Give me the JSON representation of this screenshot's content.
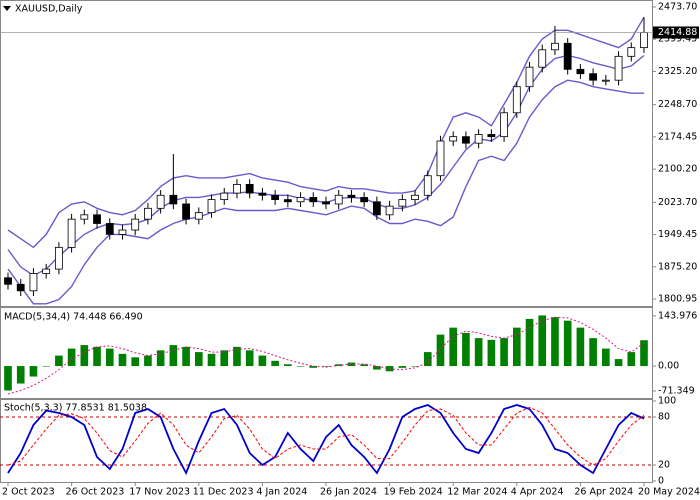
{
  "chart_data": [
    {
      "type": "candlestick",
      "title": "XAUUSD,Daily",
      "categories": [
        "2 Oct 2023",
        null,
        null,
        null,
        null,
        "26 Oct 2023",
        null,
        null,
        null,
        null,
        "17 Nov 2023",
        null,
        null,
        null,
        null,
        "11 Dec 2023",
        null,
        null,
        null,
        null,
        "4 Jan 2024",
        null,
        null,
        null,
        null,
        "26 Jan 2024",
        null,
        null,
        null,
        null,
        "19 Feb 2024",
        null,
        null,
        null,
        null,
        "12 Mar 2024",
        null,
        null,
        null,
        null,
        "4 Apr 2024",
        null,
        null,
        null,
        null,
        "26 Apr 2024",
        null,
        null,
        null,
        null,
        "20 May 2024"
      ],
      "open": [
        1850,
        1835,
        1820,
        1860,
        1870,
        1920,
        1985,
        1995,
        1975,
        1950,
        1960,
        1985,
        2010,
        2040,
        2020,
        1985,
        2000,
        2030,
        2045,
        2065,
        2045,
        2040,
        2030,
        2025,
        2035,
        2025,
        2020,
        2040,
        2035,
        2025,
        1995,
        2015,
        2030,
        2040,
        2085,
        2165,
        2175,
        2160,
        2180,
        2175,
        2230,
        2290,
        2335,
        2375,
        2390,
        2330,
        2320,
        2305,
        2305,
        2360,
        2380
      ],
      "high": [
        1862,
        1847,
        1872,
        1882,
        1932,
        1997,
        2007,
        2007,
        1987,
        1972,
        1997,
        2022,
        2052,
        2135,
        2032,
        2012,
        2042,
        2057,
        2077,
        2077,
        2057,
        2052,
        2042,
        2047,
        2047,
        2037,
        2052,
        2052,
        2047,
        2037,
        2027,
        2042,
        2052,
        2097,
        2177,
        2187,
        2187,
        2192,
        2192,
        2242,
        2302,
        2347,
        2387,
        2430,
        2402,
        2342,
        2332,
        2317,
        2372,
        2392,
        2450
      ],
      "low": [
        1823,
        1808,
        1808,
        1848,
        1858,
        1908,
        1973,
        1963,
        1938,
        1938,
        1948,
        1973,
        1998,
        2008,
        1973,
        1973,
        1988,
        2018,
        2033,
        2033,
        2028,
        2018,
        2013,
        2013,
        2013,
        2008,
        2008,
        2023,
        2013,
        1983,
        1983,
        2003,
        2018,
        2028,
        2073,
        2153,
        2148,
        2148,
        2163,
        2163,
        2218,
        2278,
        2323,
        2363,
        2318,
        2308,
        2293,
        2293,
        2293,
        2348,
        2368
      ],
      "close": [
        1835,
        1820,
        1860,
        1870,
        1920,
        1985,
        1995,
        1975,
        1950,
        1960,
        1985,
        2010,
        2040,
        2020,
        1985,
        2000,
        2030,
        2045,
        2065,
        2045,
        2040,
        2030,
        2025,
        2035,
        2025,
        2020,
        2040,
        2035,
        2025,
        1995,
        2015,
        2030,
        2040,
        2085,
        2165,
        2175,
        2160,
        2180,
        2175,
        2230,
        2290,
        2335,
        2375,
        2390,
        2330,
        2320,
        2305,
        2305,
        2360,
        2380,
        2415
      ],
      "up_color": "#ffffff",
      "down_color": "#000000",
      "bands": {
        "color": "#6a5acd",
        "upper": [
          1960,
          1940,
          1920,
          1950,
          2000,
          2020,
          2025,
          2010,
          2000,
          1995,
          2005,
          2030,
          2060,
          2080,
          2085,
          2080,
          2080,
          2080,
          2085,
          2090,
          2080,
          2075,
          2070,
          2060,
          2055,
          2050,
          2060,
          2055,
          2055,
          2050,
          2045,
          2045,
          2050,
          2090,
          2160,
          2220,
          2230,
          2220,
          2200,
          2250,
          2300,
          2360,
          2400,
          2420,
          2420,
          2410,
          2400,
          2390,
          2380,
          2400,
          2450
        ],
        "middle": [
          1915,
          1875,
          1855,
          1870,
          1900,
          1925,
          1950,
          1965,
          1975,
          1972,
          1975,
          1985,
          2010,
          2028,
          2035,
          2035,
          2040,
          2045,
          2045,
          2048,
          2043,
          2040,
          2040,
          2033,
          2028,
          2023,
          2033,
          2035,
          2033,
          2020,
          2010,
          2010,
          2018,
          2035,
          2065,
          2105,
          2145,
          2170,
          2165,
          2185,
          2230,
          2290,
          2330,
          2355,
          2362,
          2355,
          2345,
          2338,
          2330,
          2338,
          2362
        ],
        "lower": [
          1870,
          1830,
          1790,
          1790,
          1800,
          1830,
          1880,
          1920,
          1950,
          1950,
          1945,
          1940,
          1960,
          1975,
          1985,
          1990,
          2000,
          2010,
          2005,
          2005,
          2005,
          2005,
          2010,
          2005,
          2000,
          1995,
          2005,
          2015,
          2010,
          1990,
          1975,
          1975,
          1985,
          1980,
          1970,
          1990,
          2060,
          2120,
          2130,
          2120,
          2160,
          2220,
          2260,
          2290,
          2305,
          2300,
          2290,
          2285,
          2280,
          2275,
          2275
        ]
      },
      "last_price": 2414.88,
      "ylim": [
        1787.3,
        2485.1
      ],
      "yticks": [
        {
          "value": 2473.7,
          "label": "2473.70"
        },
        2399.45,
        {
          "value": 2325.2,
          "label": "2325.20"
        },
        {
          "value": 2248.7,
          "label": "2248.70"
        },
        2174.45,
        {
          "value": 2100.2,
          "label": "2100.20"
        },
        {
          "value": 2023.7,
          "label": "2023.70"
        },
        1949.45,
        {
          "value": 1875.2,
          "label": "1875.20"
        },
        1800.95
      ]
    },
    {
      "type": "bar",
      "title": "MACD(5,34,4) 74.448 66.490",
      "color": "#008000",
      "values": [
        -70,
        -50,
        -30,
        0,
        30,
        50,
        60,
        55,
        50,
        35,
        25,
        30,
        45,
        60,
        55,
        40,
        35,
        45,
        55,
        45,
        30,
        15,
        5,
        0,
        -5,
        0,
        5,
        10,
        5,
        -10,
        -15,
        -5,
        0,
        40,
        90,
        110,
        95,
        80,
        75,
        80,
        110,
        135,
        145,
        140,
        130,
        110,
        80,
        50,
        20,
        40,
        74
      ],
      "signal": {
        "color": "#e0148c",
        "values": [
          -80,
          -70,
          -55,
          -35,
          -10,
          20,
          40,
          55,
          58,
          50,
          38,
          30,
          35,
          45,
          55,
          50,
          40,
          40,
          48,
          50,
          42,
          30,
          18,
          8,
          0,
          -3,
          2,
          6,
          6,
          0,
          -8,
          -10,
          -5,
          10,
          50,
          85,
          100,
          95,
          85,
          80,
          90,
          110,
          130,
          140,
          138,
          125,
          105,
          80,
          50,
          40,
          66
        ]
      },
      "ylim": [
        -88.6,
        163.4
      ],
      "yticks": [
        143.976,
        {
          "value": 0,
          "label": "0.00"
        },
        -71.349
      ]
    },
    {
      "type": "line",
      "title": "Stoch(5,3,3) 77.8531 81.5038",
      "series": [
        {
          "color": "#0000cd",
          "values": [
            10,
            35,
            70,
            88,
            85,
            80,
            70,
            30,
            15,
            40,
            85,
            90,
            80,
            40,
            10,
            50,
            85,
            90,
            70,
            35,
            20,
            30,
            60,
            40,
            25,
            55,
            70,
            45,
            30,
            10,
            40,
            80,
            90,
            95,
            85,
            60,
            40,
            35,
            60,
            90,
            95,
            90,
            70,
            40,
            35,
            20,
            10,
            40,
            70,
            85,
            78
          ]
        },
        {
          "color": "#ff0000",
          "dash": true,
          "values": [
            20,
            25,
            45,
            65,
            82,
            84,
            78,
            60,
            38,
            30,
            50,
            72,
            85,
            70,
            45,
            35,
            55,
            78,
            82,
            65,
            40,
            28,
            40,
            45,
            40,
            40,
            55,
            58,
            45,
            28,
            28,
            48,
            70,
            88,
            90,
            82,
            60,
            45,
            45,
            65,
            85,
            92,
            85,
            65,
            45,
            30,
            20,
            28,
            50,
            70,
            82
          ]
        }
      ],
      "levels": [
        20,
        80
      ],
      "level_color": "#c00000",
      "ylim": [
        0,
        100
      ],
      "yticks": [
        100,
        80,
        20,
        0
      ]
    }
  ]
}
